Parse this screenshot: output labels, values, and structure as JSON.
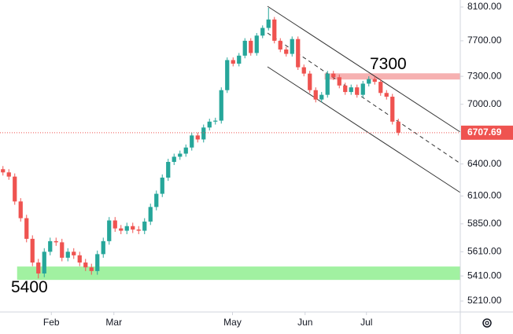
{
  "chart_data": {
    "type": "candlestick",
    "log_scale": true,
    "grid": false,
    "up_color": "#26a69a",
    "down_color": "#ef5350",
    "ylim": [
      5125,
      8186
    ],
    "xlim": [
      -0.5,
      77.5
    ],
    "yticks": [
      {
        "value": 8100,
        "label": "8100.00"
      },
      {
        "value": 7700,
        "label": "7700.00"
      },
      {
        "value": 7300,
        "label": "7300.00"
      },
      {
        "value": 7000,
        "label": "7000.00"
      },
      {
        "value": 6400,
        "label": "6400.00"
      },
      {
        "value": 6100,
        "label": "6100.00"
      },
      {
        "value": 5850,
        "label": "5850.00"
      },
      {
        "value": 5610,
        "label": "5610.00"
      },
      {
        "value": 5410,
        "label": "5410.00"
      },
      {
        "value": 5210,
        "label": "5210.00"
      }
    ],
    "xticks": [
      {
        "value": 8.2,
        "label": "Feb"
      },
      {
        "value": 18.8,
        "label": "Mar"
      },
      {
        "value": 38.9,
        "label": "May"
      },
      {
        "value": 51.2,
        "label": "Jun"
      },
      {
        "value": 61.6,
        "label": "Jul"
      }
    ],
    "open": [
      6350,
      6320,
      6280,
      6050,
      5900,
      5720,
      5520,
      5430,
      5610,
      5700,
      5690,
      5560,
      5610,
      5580,
      5520,
      5480,
      5450,
      5590,
      5700,
      5880,
      5810,
      5790,
      5830,
      5800,
      5790,
      5870,
      6000,
      6120,
      6270,
      6420,
      6470,
      6500,
      6560,
      6680,
      6640,
      6760,
      6820,
      6830,
      7150,
      7480,
      7440,
      7530,
      7700,
      7560,
      7760,
      7850,
      7950,
      7700,
      7600,
      7550,
      7720,
      7400,
      7330,
      7150,
      7050,
      7100,
      7330,
      7290,
      7200,
      7130,
      7180,
      7100,
      7220,
      7270,
      7240,
      7120,
      7080,
      6820
    ],
    "high": [
      6380,
      6350,
      6310,
      6080,
      5930,
      5750,
      5550,
      5640,
      5730,
      5730,
      5720,
      5640,
      5640,
      5610,
      5550,
      5510,
      5620,
      5730,
      5910,
      5910,
      5840,
      5860,
      5860,
      5830,
      5900,
      6030,
      6150,
      6300,
      6450,
      6500,
      6530,
      6590,
      6710,
      6710,
      6790,
      6850,
      6860,
      7180,
      7510,
      7510,
      7560,
      7730,
      7730,
      7790,
      7880,
      8090,
      7980,
      7730,
      7630,
      7750,
      7750,
      7430,
      7360,
      7180,
      7130,
      7360,
      7360,
      7320,
      7230,
      7210,
      7210,
      7250,
      7300,
      7300,
      7270,
      7150,
      7110,
      6850
    ],
    "low": [
      6290,
      6250,
      6020,
      5870,
      5690,
      5490,
      5390,
      5400,
      5580,
      5660,
      5530,
      5530,
      5550,
      5490,
      5450,
      5420,
      5420,
      5560,
      5670,
      5780,
      5760,
      5760,
      5770,
      5760,
      5760,
      5840,
      5970,
      6090,
      6240,
      6390,
      6440,
      6470,
      6530,
      6610,
      6610,
      6730,
      6790,
      6800,
      7120,
      7410,
      7410,
      7500,
      7530,
      7530,
      7730,
      7820,
      7670,
      7570,
      7520,
      7520,
      7370,
      7300,
      7120,
      7020,
      7020,
      7070,
      7260,
      7170,
      7100,
      7100,
      7070,
      7070,
      7190,
      7210,
      7090,
      7050,
      6790,
      6680
    ],
    "close": [
      6320,
      6280,
      6050,
      5900,
      5720,
      5520,
      5430,
      5610,
      5700,
      5690,
      5560,
      5610,
      5580,
      5520,
      5480,
      5450,
      5590,
      5700,
      5880,
      5810,
      5790,
      5830,
      5800,
      5790,
      5870,
      6000,
      6120,
      6270,
      6420,
      6470,
      6500,
      6560,
      6680,
      6640,
      6760,
      6820,
      6830,
      7150,
      7480,
      7440,
      7530,
      7700,
      7560,
      7760,
      7850,
      7950,
      7700,
      7600,
      7550,
      7720,
      7400,
      7330,
      7150,
      7050,
      7100,
      7330,
      7290,
      7200,
      7130,
      7180,
      7100,
      7220,
      7270,
      7240,
      7120,
      7080,
      6820,
      6707.69
    ],
    "last_price": 6707.69,
    "zones": [
      {
        "from": 5378,
        "to": 5487,
        "start": 2.4,
        "color": "#90ee90"
      },
      {
        "from": 7265,
        "to": 7333,
        "start": 54.5,
        "color": "#f4a3a3"
      }
    ],
    "annotations": [
      "7300",
      "5400"
    ]
  }
}
